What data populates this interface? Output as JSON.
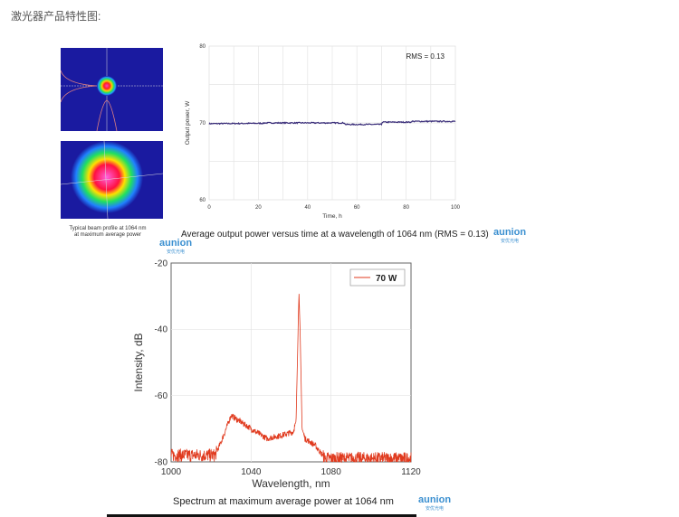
{
  "heading": "激光器产品特性图:",
  "beam_profile": {
    "caption_line1": "Typical beam profile at 1064 nm",
    "caption_line2": "at maximum average power"
  },
  "watermark": {
    "brand": "aunion",
    "sub": "安优光电"
  },
  "chart_data": [
    {
      "type": "line",
      "title": "",
      "caption": "Average output power versus time at a wavelength of 1064 nm (RMS = 0.13)",
      "annotation": "RMS = 0.13",
      "xlabel": "Time, h",
      "ylabel": "Output power, W",
      "xlim": [
        0,
        100
      ],
      "ylim": [
        60,
        80
      ],
      "xticks": [
        "0",
        "20",
        "40",
        "60",
        "80",
        "100"
      ],
      "yticks": [
        "60",
        "70",
        "80"
      ],
      "grid": true,
      "color": "#3b2f7a",
      "series": [
        {
          "name": "Output power",
          "x": [
            0,
            22,
            22.01,
            55,
            55.01,
            70,
            70.01,
            82,
            82.01,
            100
          ],
          "y": [
            69.9,
            69.95,
            70.0,
            70.0,
            69.8,
            69.8,
            70.1,
            70.1,
            70.2,
            70.2
          ]
        }
      ]
    },
    {
      "type": "line",
      "caption": "Spectrum at maximum average power at 1064 nm",
      "xlabel": "Wavelength, nm",
      "ylabel": "Intensity, dB",
      "xlim": [
        1000,
        1120
      ],
      "ylim": [
        -80,
        -20
      ],
      "xticks": [
        "1000",
        "1040",
        "1080",
        "1120"
      ],
      "yticks": [
        "-20",
        "-40",
        "-60",
        "-80"
      ],
      "grid": true,
      "legend": "top-right",
      "color": "#e03a1e",
      "series": [
        {
          "name": "70 W",
          "x": [
            1000,
            1022,
            1025,
            1030,
            1040,
            1048,
            1055,
            1061,
            1062.5,
            1063.5,
            1064,
            1064.5,
            1065.5,
            1067,
            1072,
            1077,
            1080,
            1120
          ],
          "y": [
            -78,
            -78,
            -74,
            -66,
            -70,
            -73,
            -72,
            -71,
            -68,
            -40,
            -29,
            -40,
            -70,
            -73,
            -75,
            -79,
            -79,
            -79
          ]
        }
      ]
    }
  ]
}
